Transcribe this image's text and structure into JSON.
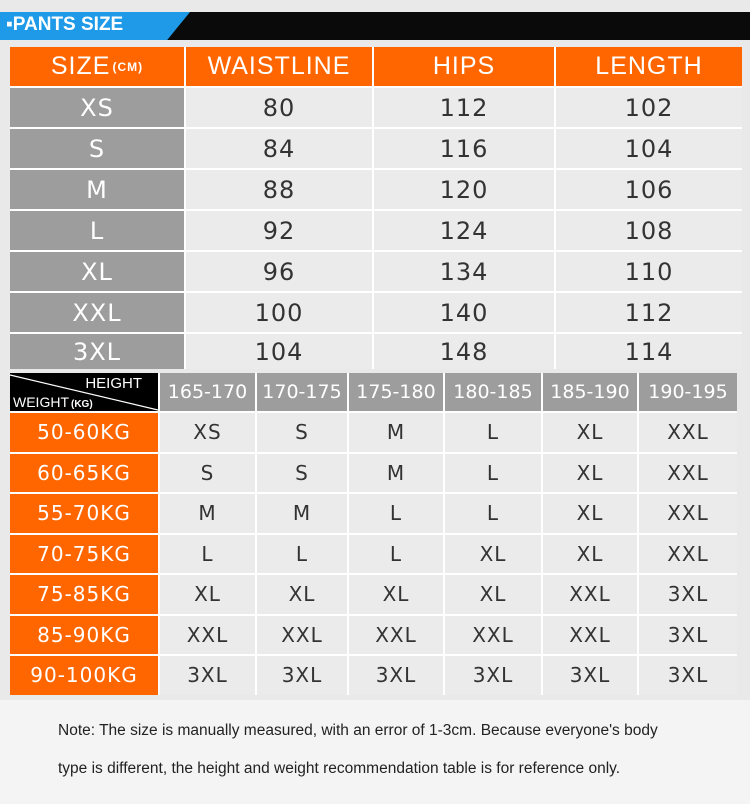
{
  "header": {
    "title": "▪PANTS SIZE"
  },
  "size_table": {
    "headers": [
      "SIZE",
      "WAISTLINE",
      "HIPS",
      "LENGTH"
    ],
    "size_unit": "(CM)",
    "rows": [
      [
        "XS",
        "80",
        "112",
        "102"
      ],
      [
        "S",
        "84",
        "116",
        "104"
      ],
      [
        "M",
        "88",
        "120",
        "106"
      ],
      [
        "L",
        "92",
        "124",
        "108"
      ],
      [
        "XL",
        "96",
        "134",
        "110"
      ],
      [
        "XXL",
        "100",
        "140",
        "112"
      ],
      [
        "3XL",
        "104",
        "148",
        "114"
      ]
    ]
  },
  "recommend_table": {
    "corner_height": "HEIGHT",
    "corner_weight": "WEIGHT",
    "weight_unit": "(KG)",
    "heights": [
      "165-170",
      "170-175",
      "175-180",
      "180-185",
      "185-190",
      "190-195"
    ],
    "rows": [
      {
        "weight": "50-60KG",
        "sizes": [
          "XS",
          "S",
          "M",
          "L",
          "XL",
          "XXL"
        ]
      },
      {
        "weight": "60-65KG",
        "sizes": [
          "S",
          "S",
          "M",
          "L",
          "XL",
          "XXL"
        ]
      },
      {
        "weight": "55-70KG",
        "sizes": [
          "M",
          "M",
          "L",
          "L",
          "XL",
          "XXL"
        ]
      },
      {
        "weight": "70-75KG",
        "sizes": [
          "L",
          "L",
          "L",
          "XL",
          "XL",
          "XXL"
        ]
      },
      {
        "weight": "75-85KG",
        "sizes": [
          "XL",
          "XL",
          "XL",
          "XL",
          "XXL",
          "3XL"
        ]
      },
      {
        "weight": "85-90KG",
        "sizes": [
          "XXL",
          "XXL",
          "XXL",
          "XXL",
          "XXL",
          "3XL"
        ]
      },
      {
        "weight": "90-100KG",
        "sizes": [
          "3XL",
          "3XL",
          "3XL",
          "3XL",
          "3XL",
          "3XL"
        ]
      }
    ]
  },
  "note": {
    "line1": "Note: The size is manually measured, with an error of 1-3cm. Because everyone's body",
    "line2": "type is different, the height and weight recommendation table is for reference only."
  },
  "colors": {
    "accent_orange": "#ff6600",
    "header_blue": "#1e9ae8",
    "gray": "#9d9d9d"
  }
}
